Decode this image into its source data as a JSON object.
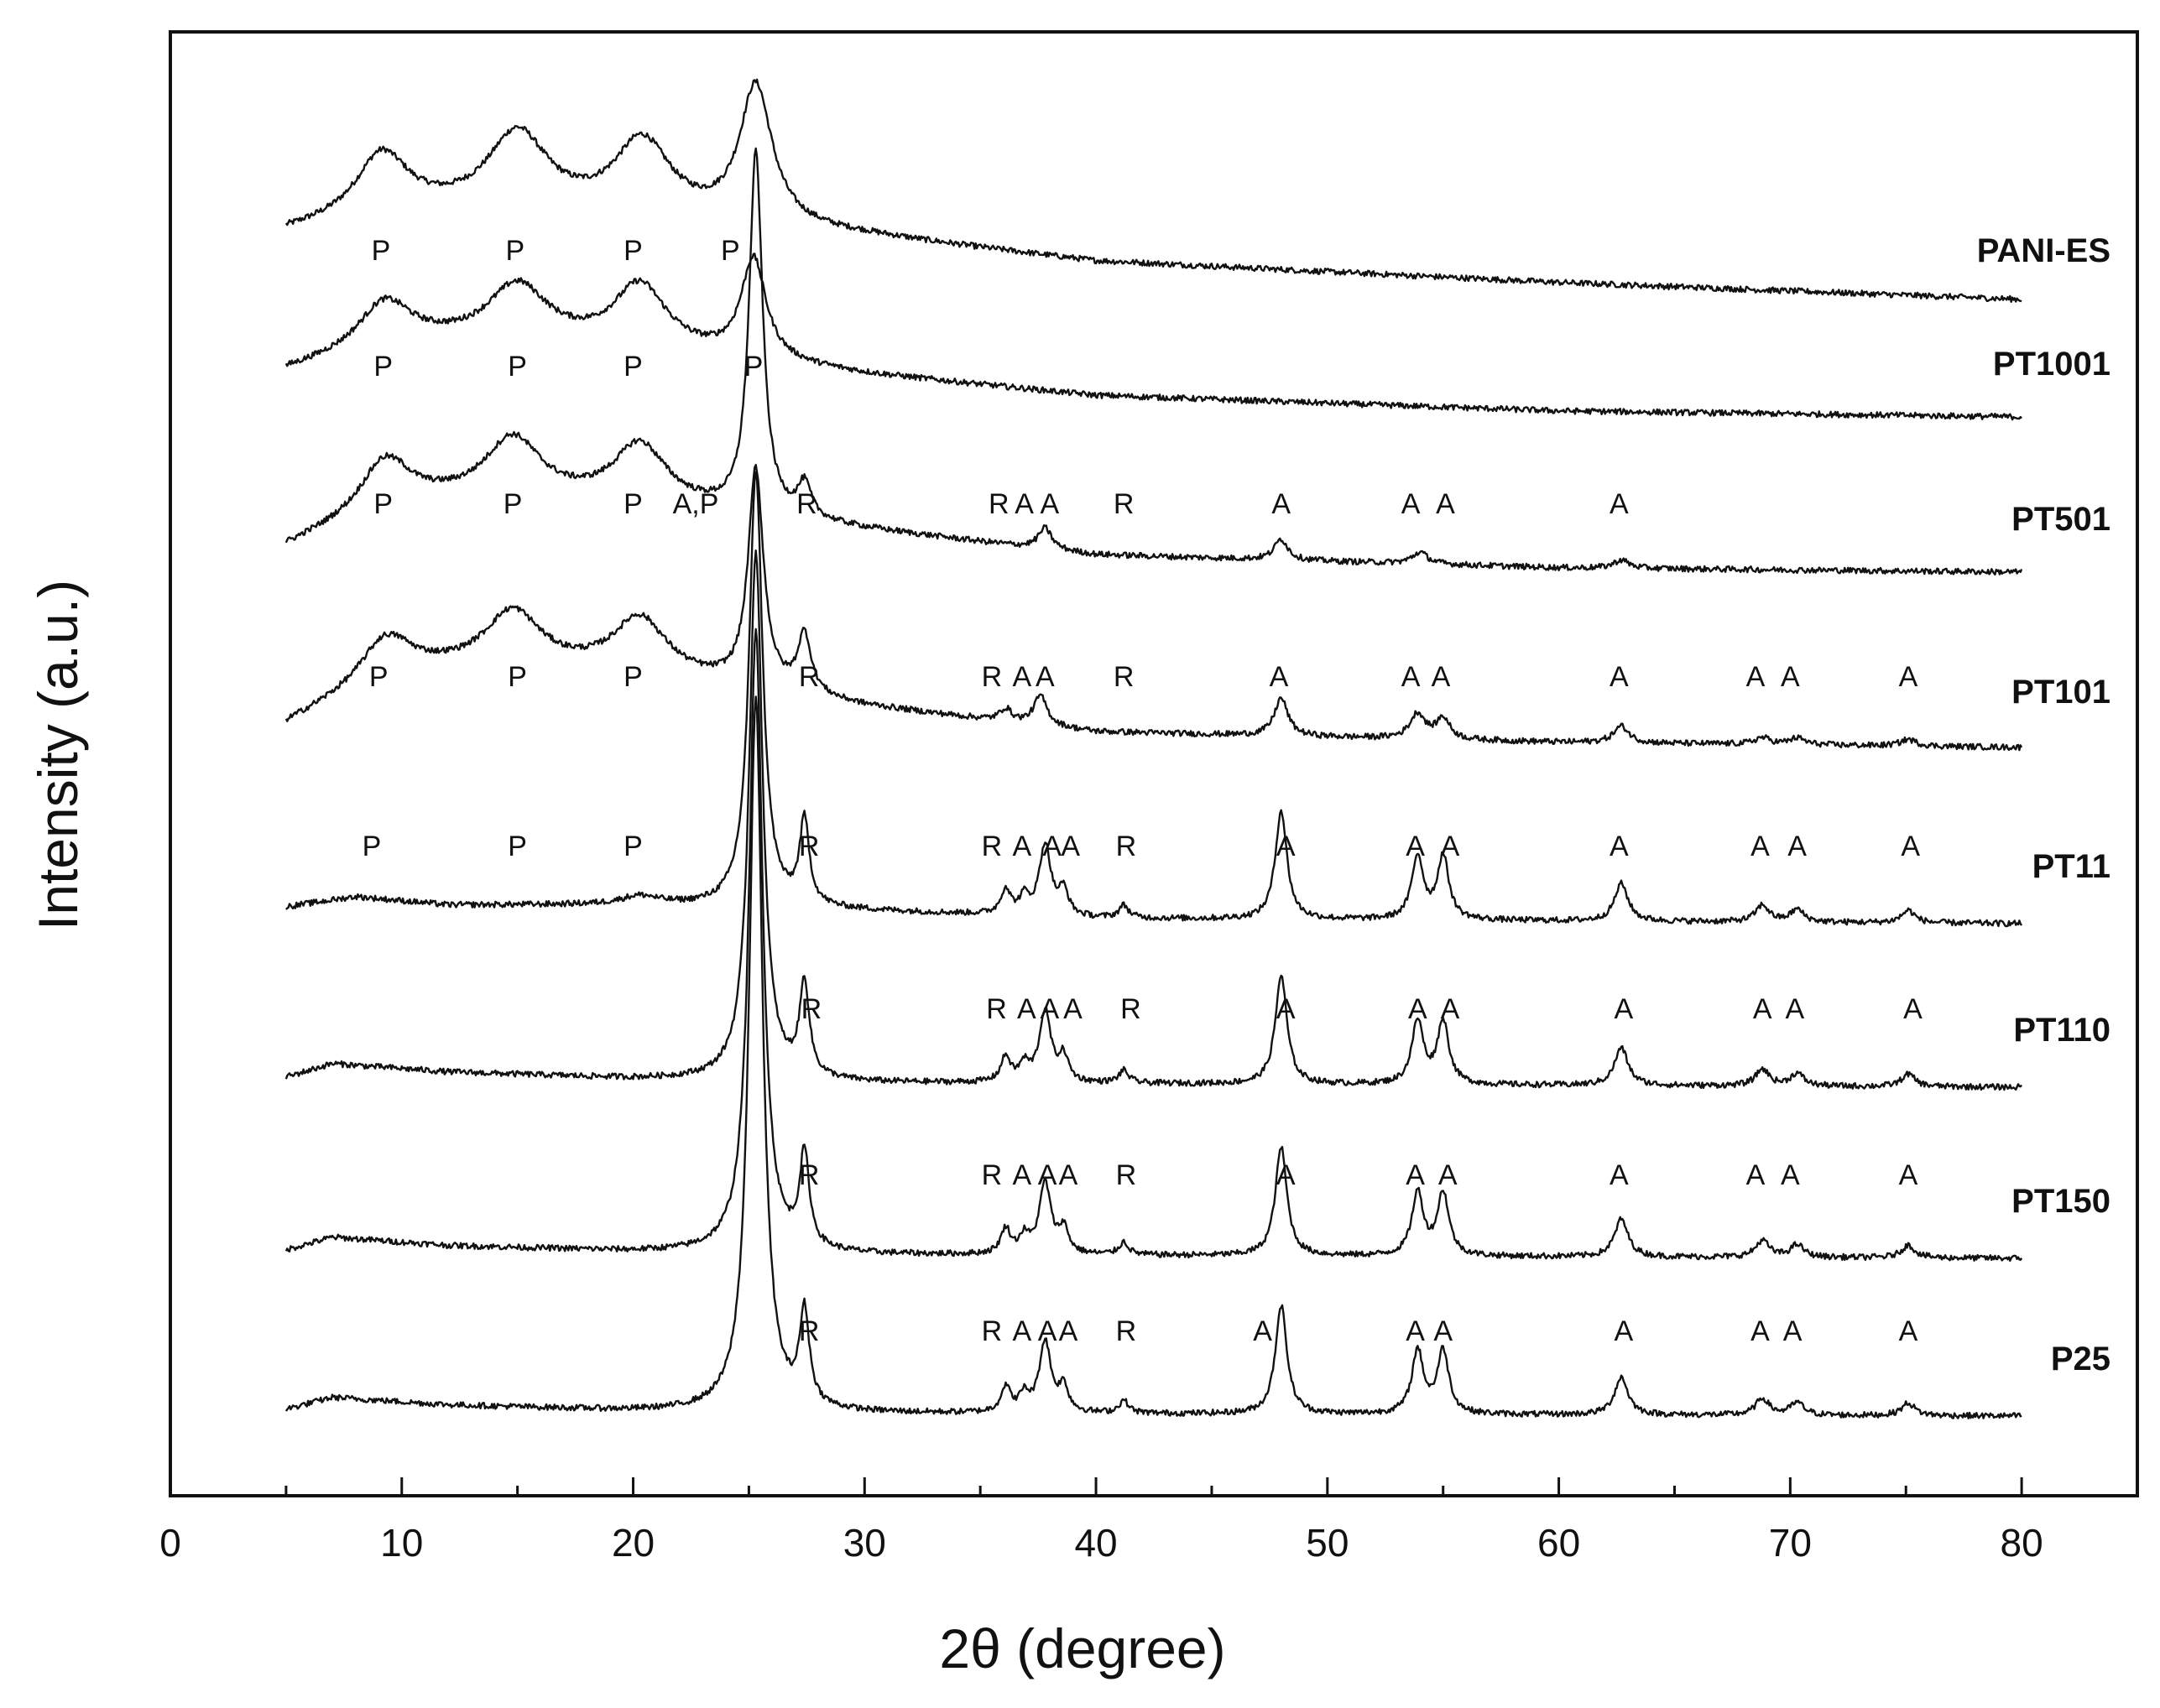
{
  "chart_data": {
    "type": "line",
    "title": "",
    "xlabel": "2θ (degree)",
    "ylabel": "Intensity (a.u.)",
    "xlim": [
      0,
      85
    ],
    "xticks": [
      0,
      10,
      20,
      30,
      40,
      50,
      60,
      70,
      80
    ],
    "data_range": [
      5,
      80
    ],
    "y_axis_ticks": "none (stacked patterns, arbitrary units)",
    "grid": false,
    "legend": "series names placed at right end of each trace",
    "series": [
      {
        "name": "PANI-ES",
        "baseline": [
          [
            5,
            0.9
          ],
          [
            10,
            1.15
          ],
          [
            20,
            1.05
          ],
          [
            30,
            0.85
          ],
          [
            40,
            0.55
          ],
          [
            60,
            0.3
          ],
          [
            80,
            0.1
          ]
        ],
        "peaks": [
          [
            9.1,
            0.7,
            1.3
          ],
          [
            15.0,
            0.95,
            1.6
          ],
          [
            20.4,
            0.9,
            1.5
          ],
          [
            25.3,
            1.65,
            0.85
          ]
        ],
        "annotations": [
          {
            "x": 9.1,
            "text": "P"
          },
          {
            "x": 14.9,
            "text": "P"
          },
          {
            "x": 20.0,
            "text": "P"
          },
          {
            "x": 24.2,
            "text": "P"
          }
        ]
      },
      {
        "name": "PT1001",
        "baseline": [
          [
            5,
            0.6
          ],
          [
            10,
            0.95
          ],
          [
            20,
            0.85
          ],
          [
            30,
            0.55
          ],
          [
            40,
            0.3
          ],
          [
            60,
            0.12
          ],
          [
            80,
            0.05
          ]
        ],
        "peaks": [
          [
            9.2,
            0.5,
            1.3
          ],
          [
            15.0,
            0.7,
            1.6
          ],
          [
            20.3,
            0.75,
            1.4
          ],
          [
            25.2,
            1.2,
            0.65
          ]
        ],
        "annotations": [
          {
            "x": 9.2,
            "text": "P"
          },
          {
            "x": 15.0,
            "text": "P"
          },
          {
            "x": 20.0,
            "text": "P"
          },
          {
            "x": 25.2,
            "text": "P"
          }
        ]
      },
      {
        "name": "PT501",
        "baseline": [
          [
            5,
            0.35
          ],
          [
            10,
            0.9
          ],
          [
            20,
            0.85
          ],
          [
            30,
            0.55
          ],
          [
            40,
            0.25
          ],
          [
            60,
            0.1
          ],
          [
            80,
            0.05
          ]
        ],
        "peaks": [
          [
            9.2,
            0.55,
            1.2
          ],
          [
            14.8,
            0.75,
            1.5
          ],
          [
            20.3,
            0.7,
            1.4
          ],
          [
            25.3,
            4.3,
            0.35
          ],
          [
            27.4,
            0.4,
            0.35
          ],
          [
            37.8,
            0.25,
            0.35
          ],
          [
            48.0,
            0.25,
            0.35
          ],
          [
            54.0,
            0.14,
            0.4
          ],
          [
            62.7,
            0.1,
            0.4
          ]
        ],
        "annotations": [
          {
            "x": 22.7,
            "text": "A,P"
          },
          {
            "x": 9.2,
            "text": "P"
          },
          {
            "x": 14.8,
            "text": "P"
          },
          {
            "x": 20.0,
            "text": "P"
          },
          {
            "x": 27.5,
            "text": "R"
          },
          {
            "x": 35.8,
            "text": "R"
          },
          {
            "x": 36.9,
            "text": "A"
          },
          {
            "x": 38.0,
            "text": "A"
          },
          {
            "x": 41.2,
            "text": "R"
          },
          {
            "x": 48.0,
            "text": "A"
          },
          {
            "x": 53.6,
            "text": "A"
          },
          {
            "x": 55.1,
            "text": "A"
          },
          {
            "x": 62.6,
            "text": "A"
          }
        ]
      },
      {
        "name": "PT101",
        "baseline": [
          [
            5,
            0.3
          ],
          [
            10,
            0.95
          ],
          [
            20,
            0.9
          ],
          [
            30,
            0.5
          ],
          [
            40,
            0.2
          ],
          [
            60,
            0.08
          ],
          [
            80,
            0.02
          ]
        ],
        "peaks": [
          [
            9.2,
            0.45,
            1.2
          ],
          [
            14.8,
            0.7,
            1.5
          ],
          [
            20.3,
            0.65,
            1.4
          ],
          [
            25.3,
            2.6,
            0.4
          ],
          [
            27.4,
            0.7,
            0.35
          ],
          [
            36.1,
            0.15,
            0.3
          ],
          [
            37.6,
            0.35,
            0.35
          ],
          [
            48.0,
            0.45,
            0.35
          ],
          [
            53.9,
            0.3,
            0.4
          ],
          [
            55.0,
            0.25,
            0.35
          ],
          [
            62.7,
            0.2,
            0.4
          ],
          [
            68.8,
            0.08,
            0.4
          ],
          [
            70.3,
            0.08,
            0.4
          ],
          [
            75.1,
            0.08,
            0.4
          ]
        ],
        "annotations": [
          {
            "x": 9.0,
            "text": "P"
          },
          {
            "x": 15.0,
            "text": "P"
          },
          {
            "x": 20.0,
            "text": "P"
          },
          {
            "x": 27.6,
            "text": "R"
          },
          {
            "x": 35.5,
            "text": "R"
          },
          {
            "x": 36.8,
            "text": "A"
          },
          {
            "x": 37.8,
            "text": "A"
          },
          {
            "x": 41.2,
            "text": "R"
          },
          {
            "x": 47.9,
            "text": "A"
          },
          {
            "x": 53.6,
            "text": "A"
          },
          {
            "x": 54.9,
            "text": "A"
          },
          {
            "x": 62.6,
            "text": "A"
          },
          {
            "x": 68.5,
            "text": "A"
          },
          {
            "x": 70.0,
            "text": "A"
          },
          {
            "x": 75.1,
            "text": "A"
          }
        ]
      },
      {
        "name": "PT11",
        "baseline": [
          [
            5,
            0.2
          ],
          [
            8,
            0.32
          ],
          [
            12,
            0.22
          ],
          [
            20,
            0.22
          ],
          [
            30,
            0.15
          ],
          [
            40,
            0.06
          ],
          [
            80,
            0.0
          ]
        ],
        "peaks": [
          [
            20.3,
            0.1,
            1.0
          ],
          [
            25.3,
            5.2,
            0.35
          ],
          [
            27.4,
            1.0,
            0.25
          ],
          [
            36.1,
            0.3,
            0.25
          ],
          [
            36.9,
            0.2,
            0.25
          ],
          [
            37.8,
            0.85,
            0.3
          ],
          [
            38.6,
            0.3,
            0.25
          ],
          [
            41.2,
            0.15,
            0.25
          ],
          [
            48.0,
            1.3,
            0.3
          ],
          [
            53.9,
            0.75,
            0.3
          ],
          [
            55.0,
            0.75,
            0.3
          ],
          [
            62.7,
            0.45,
            0.35
          ],
          [
            68.8,
            0.2,
            0.35
          ],
          [
            70.3,
            0.15,
            0.35
          ],
          [
            75.1,
            0.15,
            0.35
          ]
        ],
        "annotations": [
          {
            "x": 8.7,
            "text": "P"
          },
          {
            "x": 15.0,
            "text": "P"
          },
          {
            "x": 20.0,
            "text": "P"
          },
          {
            "x": 27.6,
            "text": "R"
          },
          {
            "x": 35.5,
            "text": "R"
          },
          {
            "x": 36.8,
            "text": "A"
          },
          {
            "x": 38.1,
            "text": "A"
          },
          {
            "x": 38.9,
            "text": "A"
          },
          {
            "x": 41.3,
            "text": "R"
          },
          {
            "x": 48.2,
            "text": "A"
          },
          {
            "x": 53.8,
            "text": "A"
          },
          {
            "x": 55.3,
            "text": "A"
          },
          {
            "x": 62.6,
            "text": "A"
          },
          {
            "x": 68.7,
            "text": "A"
          },
          {
            "x": 70.3,
            "text": "A"
          },
          {
            "x": 75.2,
            "text": "A"
          }
        ]
      },
      {
        "name": "PT110",
        "baseline": [
          [
            5,
            0.12
          ],
          [
            7,
            0.28
          ],
          [
            12,
            0.18
          ],
          [
            20,
            0.1
          ],
          [
            30,
            0.05
          ],
          [
            80,
            0.0
          ]
        ],
        "peaks": [
          [
            25.3,
            6.3,
            0.35
          ],
          [
            27.4,
            1.1,
            0.25
          ],
          [
            36.1,
            0.3,
            0.25
          ],
          [
            36.9,
            0.2,
            0.25
          ],
          [
            37.8,
            0.85,
            0.3
          ],
          [
            38.6,
            0.3,
            0.25
          ],
          [
            41.2,
            0.15,
            0.25
          ],
          [
            48.0,
            1.3,
            0.3
          ],
          [
            53.9,
            0.75,
            0.3
          ],
          [
            55.0,
            0.75,
            0.3
          ],
          [
            62.7,
            0.45,
            0.35
          ],
          [
            68.8,
            0.2,
            0.35
          ],
          [
            70.3,
            0.15,
            0.35
          ],
          [
            75.1,
            0.15,
            0.35
          ]
        ],
        "annotations": [
          {
            "x": 27.7,
            "text": "R"
          },
          {
            "x": 35.7,
            "text": "R"
          },
          {
            "x": 37.0,
            "text": "A"
          },
          {
            "x": 38.0,
            "text": "A"
          },
          {
            "x": 39.0,
            "text": "A"
          },
          {
            "x": 41.5,
            "text": "R"
          },
          {
            "x": 48.2,
            "text": "A"
          },
          {
            "x": 53.9,
            "text": "A"
          },
          {
            "x": 55.3,
            "text": "A"
          },
          {
            "x": 62.8,
            "text": "A"
          },
          {
            "x": 68.8,
            "text": "A"
          },
          {
            "x": 70.2,
            "text": "A"
          },
          {
            "x": 75.3,
            "text": "A"
          }
        ]
      },
      {
        "name": "PT150",
        "baseline": [
          [
            5,
            0.1
          ],
          [
            7,
            0.25
          ],
          [
            12,
            0.15
          ],
          [
            20,
            0.08
          ],
          [
            30,
            0.04
          ],
          [
            80,
            0.0
          ]
        ],
        "peaks": [
          [
            25.3,
            7.4,
            0.35
          ],
          [
            27.4,
            1.1,
            0.25
          ],
          [
            36.1,
            0.3,
            0.25
          ],
          [
            36.9,
            0.2,
            0.25
          ],
          [
            37.8,
            0.85,
            0.3
          ],
          [
            38.6,
            0.3,
            0.25
          ],
          [
            41.2,
            0.15,
            0.25
          ],
          [
            48.0,
            1.3,
            0.3
          ],
          [
            53.9,
            0.75,
            0.3
          ],
          [
            55.0,
            0.75,
            0.3
          ],
          [
            62.7,
            0.45,
            0.35
          ],
          [
            68.8,
            0.2,
            0.35
          ],
          [
            70.3,
            0.15,
            0.35
          ],
          [
            75.1,
            0.15,
            0.35
          ]
        ],
        "annotations": [
          {
            "x": 27.6,
            "text": "R"
          },
          {
            "x": 35.5,
            "text": "R"
          },
          {
            "x": 36.8,
            "text": "A"
          },
          {
            "x": 37.9,
            "text": "A"
          },
          {
            "x": 38.8,
            "text": "A"
          },
          {
            "x": 41.3,
            "text": "R"
          },
          {
            "x": 48.2,
            "text": "A"
          },
          {
            "x": 53.8,
            "text": "A"
          },
          {
            "x": 55.2,
            "text": "A"
          },
          {
            "x": 62.6,
            "text": "A"
          },
          {
            "x": 68.5,
            "text": "A"
          },
          {
            "x": 70.0,
            "text": "A"
          },
          {
            "x": 75.1,
            "text": "A"
          }
        ]
      },
      {
        "name": "P25",
        "baseline": [
          [
            5,
            0.08
          ],
          [
            7,
            0.22
          ],
          [
            12,
            0.13
          ],
          [
            20,
            0.06
          ],
          [
            30,
            0.03
          ],
          [
            80,
            0.0
          ]
        ],
        "peaks": [
          [
            25.3,
            8.5,
            0.35
          ],
          [
            27.4,
            1.1,
            0.25
          ],
          [
            36.1,
            0.3,
            0.25
          ],
          [
            36.9,
            0.2,
            0.25
          ],
          [
            37.8,
            0.85,
            0.3
          ],
          [
            38.6,
            0.3,
            0.25
          ],
          [
            41.2,
            0.15,
            0.25
          ],
          [
            48.0,
            1.3,
            0.3
          ],
          [
            53.9,
            0.75,
            0.3
          ],
          [
            55.0,
            0.75,
            0.3
          ],
          [
            62.7,
            0.45,
            0.35
          ],
          [
            68.8,
            0.2,
            0.35
          ],
          [
            70.3,
            0.15,
            0.35
          ],
          [
            75.1,
            0.15,
            0.35
          ]
        ],
        "annotations": [
          {
            "x": 27.6,
            "text": "R"
          },
          {
            "x": 35.5,
            "text": "R"
          },
          {
            "x": 36.8,
            "text": "A"
          },
          {
            "x": 37.9,
            "text": "A"
          },
          {
            "x": 38.8,
            "text": "A"
          },
          {
            "x": 41.3,
            "text": "R"
          },
          {
            "x": 47.2,
            "text": "A"
          },
          {
            "x": 53.8,
            "text": "A"
          },
          {
            "x": 55.0,
            "text": "A"
          },
          {
            "x": 62.8,
            "text": "A"
          },
          {
            "x": 68.7,
            "text": "A"
          },
          {
            "x": 70.1,
            "text": "A"
          },
          {
            "x": 75.1,
            "text": "A"
          }
        ]
      }
    ]
  }
}
